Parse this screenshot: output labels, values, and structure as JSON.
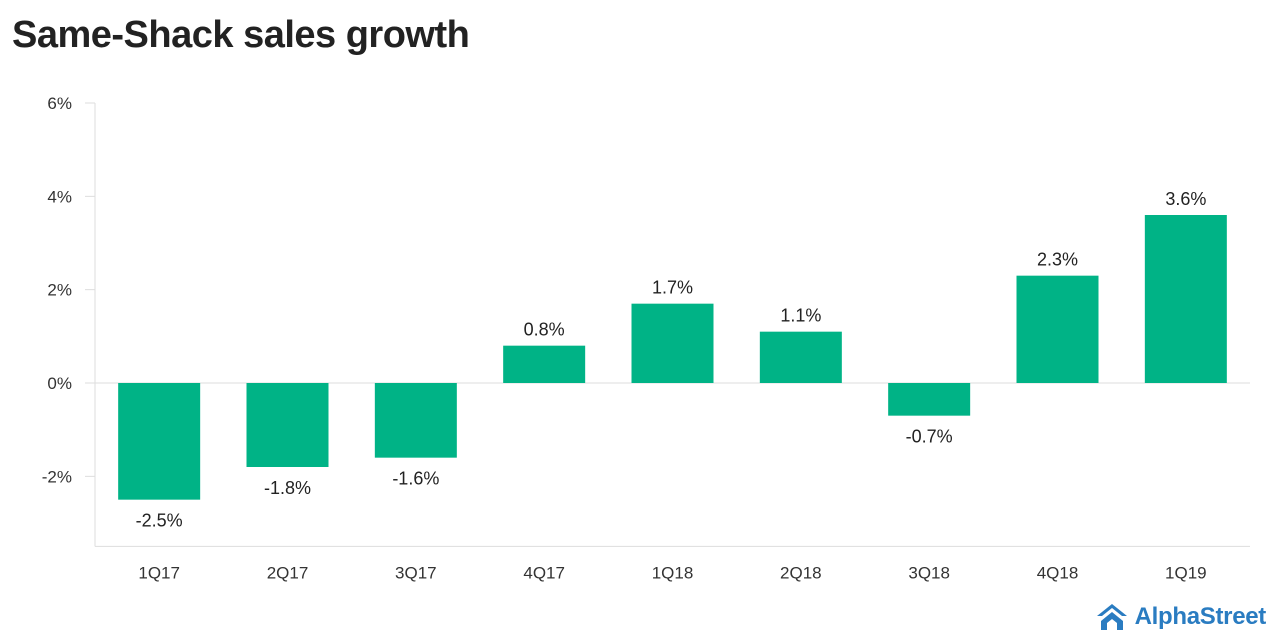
{
  "title": "Same-Shack sales growth",
  "brand": {
    "name": "AlphaStreet",
    "color": "#2a7cc1"
  },
  "chart_data": {
    "type": "bar",
    "categories": [
      "1Q17",
      "2Q17",
      "3Q17",
      "4Q17",
      "1Q18",
      "2Q18",
      "3Q18",
      "4Q18",
      "1Q19"
    ],
    "values": [
      -2.5,
      -1.8,
      -1.6,
      0.8,
      1.7,
      1.1,
      -0.7,
      2.3,
      3.6
    ],
    "value_labels": [
      "-2.5%",
      "-1.8%",
      "-1.6%",
      "0.8%",
      "1.7%",
      "1.1%",
      "-0.7%",
      "2.3%",
      "3.6%"
    ],
    "ylim": [
      -3.5,
      6
    ],
    "yticks": [
      6,
      4,
      2,
      0,
      -2
    ],
    "ytick_labels": [
      "6%",
      "4%",
      "2%",
      "0%",
      "-2%"
    ],
    "bar_color": "#00b386",
    "grid": false,
    "legend": "none"
  }
}
